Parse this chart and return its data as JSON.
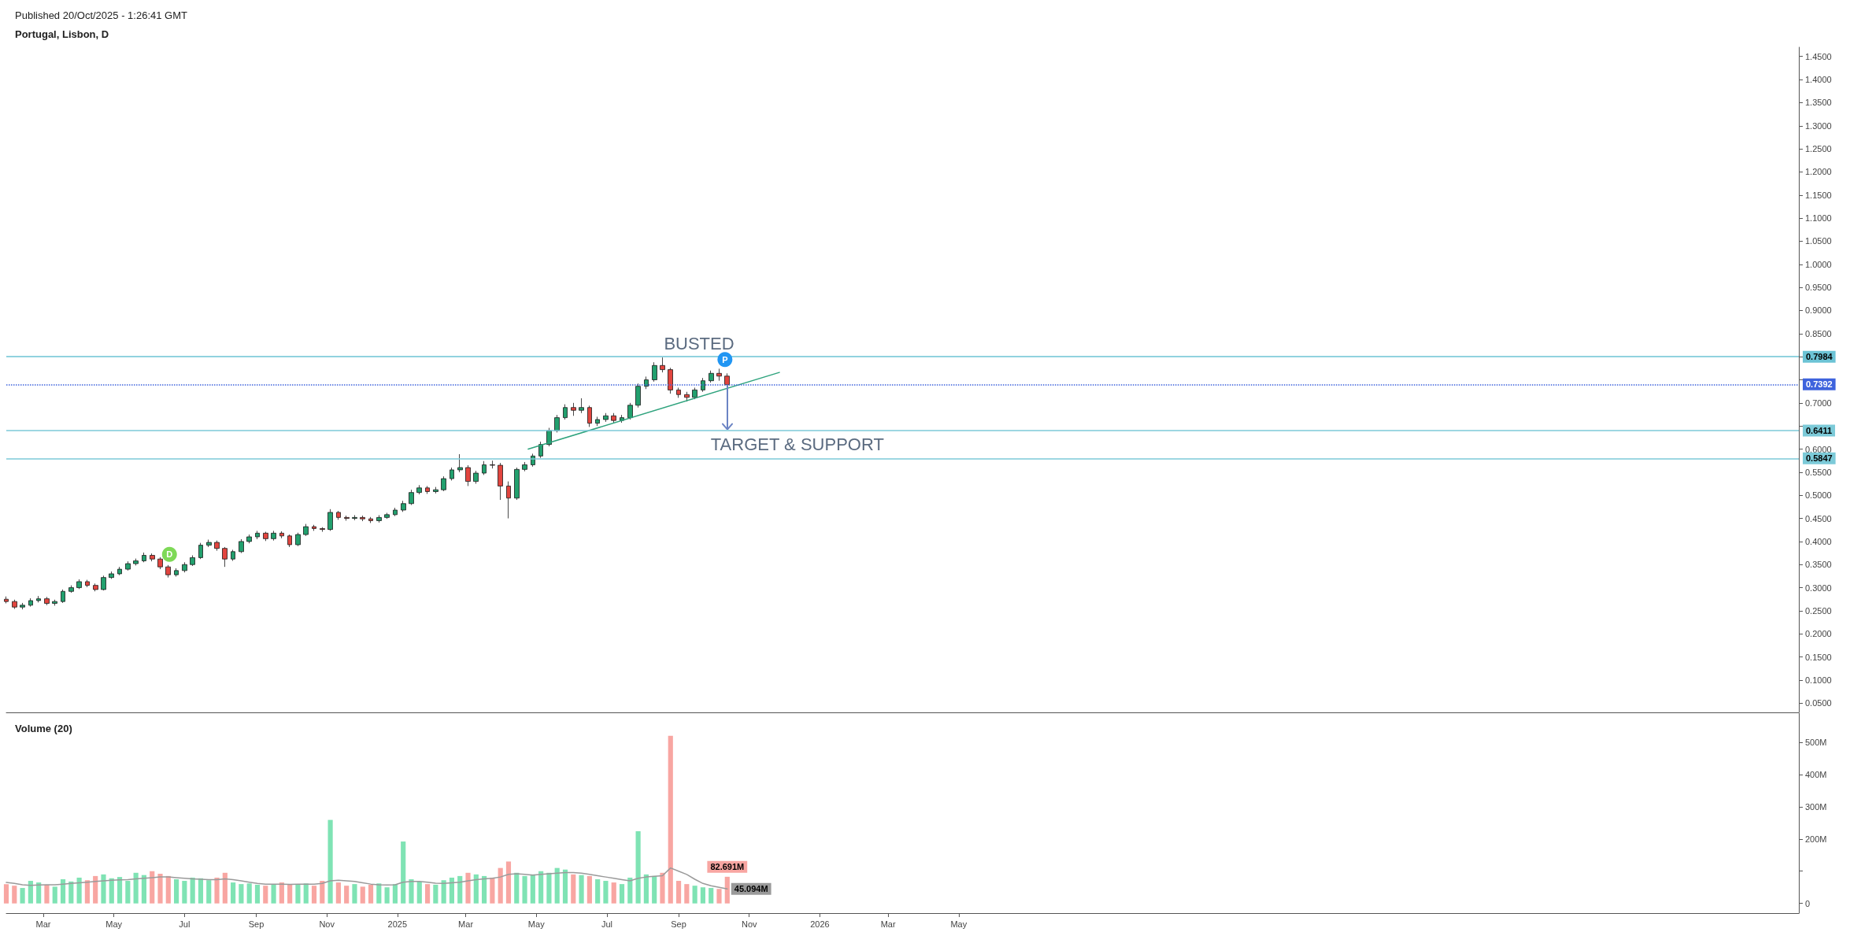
{
  "chart_data": [
    {
      "type": "candlestick",
      "title": "Portugal, Lisbon, D",
      "subtitle": "Published 20/Oct/2025 - 1:26:41 GMT",
      "x": [
        "2024-01-29",
        "2024-02-05",
        "2024-02-12",
        "2024-02-19",
        "2024-02-26",
        "2024-03-04",
        "2024-03-11",
        "2024-03-18",
        "2024-03-25",
        "2024-04-01",
        "2024-04-08",
        "2024-04-15",
        "2024-04-22",
        "2024-04-29",
        "2024-05-06",
        "2024-05-13",
        "2024-05-20",
        "2024-05-27",
        "2024-06-03",
        "2024-06-10",
        "2024-06-17",
        "2024-06-24",
        "2024-07-01",
        "2024-07-08",
        "2024-07-15",
        "2024-07-22",
        "2024-07-29",
        "2024-08-05",
        "2024-08-12",
        "2024-08-19",
        "2024-08-26",
        "2024-09-02",
        "2024-09-09",
        "2024-09-16",
        "2024-09-23",
        "2024-09-30",
        "2024-10-07",
        "2024-10-14",
        "2024-10-21",
        "2024-10-28",
        "2024-11-04",
        "2024-11-11",
        "2024-11-18",
        "2024-11-25",
        "2024-12-02",
        "2024-12-09",
        "2024-12-16",
        "2024-12-23",
        "2024-12-30",
        "2025-01-06",
        "2025-01-13",
        "2025-01-20",
        "2025-01-27",
        "2025-02-03",
        "2025-02-10",
        "2025-02-17",
        "2025-02-24",
        "2025-03-03",
        "2025-03-10",
        "2025-03-17",
        "2025-03-24",
        "2025-03-31",
        "2025-04-07",
        "2025-04-14",
        "2025-04-21",
        "2025-04-28",
        "2025-05-05",
        "2025-05-12",
        "2025-05-19",
        "2025-05-26",
        "2025-06-02",
        "2025-06-09",
        "2025-06-16",
        "2025-06-23",
        "2025-06-30",
        "2025-07-07",
        "2025-07-14",
        "2025-07-21",
        "2025-07-28",
        "2025-08-04",
        "2025-08-11",
        "2025-08-18",
        "2025-08-25",
        "2025-09-01",
        "2025-09-08",
        "2025-09-15",
        "2025-09-22",
        "2025-09-29",
        "2025-10-06",
        "2025-10-13"
      ],
      "ohlc": [
        [
          0.275,
          0.281,
          0.266,
          0.27
        ],
        [
          0.27,
          0.274,
          0.254,
          0.258
        ],
        [
          0.258,
          0.267,
          0.253,
          0.262
        ],
        [
          0.262,
          0.277,
          0.259,
          0.272
        ],
        [
          0.272,
          0.282,
          0.268,
          0.276
        ],
        [
          0.276,
          0.28,
          0.262,
          0.266
        ],
        [
          0.266,
          0.274,
          0.261,
          0.27
        ],
        [
          0.27,
          0.296,
          0.267,
          0.292
        ],
        [
          0.292,
          0.305,
          0.289,
          0.3
        ],
        [
          0.3,
          0.318,
          0.297,
          0.313
        ],
        [
          0.313,
          0.317,
          0.301,
          0.305
        ],
        [
          0.305,
          0.309,
          0.292,
          0.296
        ],
        [
          0.296,
          0.326,
          0.294,
          0.322
        ],
        [
          0.322,
          0.335,
          0.319,
          0.33
        ],
        [
          0.33,
          0.345,
          0.327,
          0.34
        ],
        [
          0.34,
          0.357,
          0.337,
          0.352
        ],
        [
          0.352,
          0.363,
          0.348,
          0.358
        ],
        [
          0.358,
          0.376,
          0.355,
          0.37
        ],
        [
          0.37,
          0.374,
          0.357,
          0.362
        ],
        [
          0.362,
          0.366,
          0.34,
          0.345
        ],
        [
          0.345,
          0.349,
          0.322,
          0.328
        ],
        [
          0.328,
          0.342,
          0.324,
          0.337
        ],
        [
          0.337,
          0.355,
          0.333,
          0.35
        ],
        [
          0.35,
          0.37,
          0.347,
          0.365
        ],
        [
          0.365,
          0.397,
          0.362,
          0.392
        ],
        [
          0.392,
          0.404,
          0.388,
          0.398
        ],
        [
          0.398,
          0.402,
          0.38,
          0.385
        ],
        [
          0.385,
          0.388,
          0.345,
          0.362
        ],
        [
          0.362,
          0.382,
          0.358,
          0.378
        ],
        [
          0.378,
          0.405,
          0.375,
          0.4
        ],
        [
          0.4,
          0.415,
          0.396,
          0.41
        ],
        [
          0.41,
          0.423,
          0.405,
          0.418
        ],
        [
          0.418,
          0.421,
          0.401,
          0.406
        ],
        [
          0.406,
          0.423,
          0.402,
          0.418
        ],
        [
          0.418,
          0.422,
          0.407,
          0.412
        ],
        [
          0.412,
          0.415,
          0.388,
          0.393
        ],
        [
          0.393,
          0.419,
          0.39,
          0.415
        ],
        [
          0.415,
          0.438,
          0.412,
          0.432
        ],
        [
          0.432,
          0.436,
          0.423,
          0.428
        ],
        [
          0.428,
          0.431,
          0.421,
          0.426
        ],
        [
          0.426,
          0.47,
          0.423,
          0.463
        ],
        [
          0.463,
          0.466,
          0.447,
          0.452
        ],
        [
          0.452,
          0.456,
          0.445,
          0.45
        ],
        [
          0.45,
          0.457,
          0.446,
          0.452
        ],
        [
          0.452,
          0.456,
          0.444,
          0.449
        ],
        [
          0.449,
          0.453,
          0.44,
          0.445
        ],
        [
          0.445,
          0.457,
          0.441,
          0.452
        ],
        [
          0.452,
          0.462,
          0.449,
          0.458
        ],
        [
          0.458,
          0.473,
          0.455,
          0.468
        ],
        [
          0.468,
          0.488,
          0.464,
          0.482
        ],
        [
          0.482,
          0.512,
          0.479,
          0.506
        ],
        [
          0.506,
          0.522,
          0.502,
          0.516
        ],
        [
          0.516,
          0.52,
          0.503,
          0.508
        ],
        [
          0.508,
          0.518,
          0.504,
          0.512
        ],
        [
          0.512,
          0.541,
          0.509,
          0.536
        ],
        [
          0.536,
          0.56,
          0.532,
          0.555
        ],
        [
          0.555,
          0.589,
          0.55,
          0.56
        ],
        [
          0.56,
          0.565,
          0.52,
          0.53
        ],
        [
          0.53,
          0.553,
          0.525,
          0.548
        ],
        [
          0.548,
          0.574,
          0.544,
          0.566
        ],
        [
          0.566,
          0.575,
          0.558,
          0.565
        ],
        [
          0.565,
          0.57,
          0.49,
          0.52
        ],
        [
          0.52,
          0.53,
          0.45,
          0.494
        ],
        [
          0.494,
          0.56,
          0.49,
          0.556
        ],
        [
          0.556,
          0.572,
          0.552,
          0.566
        ],
        [
          0.566,
          0.59,
          0.562,
          0.585
        ],
        [
          0.585,
          0.616,
          0.581,
          0.61
        ],
        [
          0.61,
          0.646,
          0.606,
          0.64
        ],
        [
          0.64,
          0.674,
          0.636,
          0.668
        ],
        [
          0.668,
          0.697,
          0.664,
          0.69
        ],
        [
          0.69,
          0.7,
          0.672,
          0.684
        ],
        [
          0.684,
          0.71,
          0.678,
          0.69
        ],
        [
          0.69,
          0.694,
          0.648,
          0.656
        ],
        [
          0.656,
          0.67,
          0.65,
          0.664
        ],
        [
          0.664,
          0.678,
          0.659,
          0.672
        ],
        [
          0.672,
          0.678,
          0.656,
          0.662
        ],
        [
          0.662,
          0.674,
          0.657,
          0.668
        ],
        [
          0.668,
          0.7,
          0.664,
          0.695
        ],
        [
          0.695,
          0.742,
          0.69,
          0.736
        ],
        [
          0.736,
          0.757,
          0.73,
          0.75
        ],
        [
          0.75,
          0.788,
          0.746,
          0.781
        ],
        [
          0.781,
          0.7984,
          0.766,
          0.772
        ],
        [
          0.772,
          0.776,
          0.72,
          0.728
        ],
        [
          0.728,
          0.733,
          0.711,
          0.718
        ],
        [
          0.718,
          0.724,
          0.703,
          0.712
        ],
        [
          0.712,
          0.733,
          0.708,
          0.728
        ],
        [
          0.728,
          0.754,
          0.724,
          0.748
        ],
        [
          0.748,
          0.77,
          0.744,
          0.764
        ],
        [
          0.764,
          0.774,
          0.748,
          0.758
        ],
        [
          0.758,
          0.764,
          0.735,
          0.7392
        ]
      ],
      "series": [
        {
          "type": "line",
          "x": [
            "2025-04-24",
            "2025-11-27"
          ],
          "values": [
            0.6,
            0.766
          ],
          "color": "#2ea37d"
        }
      ],
      "marker": "none",
      "xlim": [
        "2024-01-29",
        "2028-04-26"
      ],
      "ylim": [
        0.03,
        1.47
      ],
      "yticks": [
        {
          "value": 0.05,
          "label": "0.0500"
        },
        {
          "value": 0.1,
          "label": "0.1000"
        },
        {
          "value": 0.15,
          "label": "0.1500"
        },
        {
          "value": 0.2,
          "label": "0.2000"
        },
        {
          "value": 0.25,
          "label": "0.2500"
        },
        {
          "value": 0.3,
          "label": "0.3000"
        },
        {
          "value": 0.35,
          "label": "0.3500"
        },
        {
          "value": 0.4,
          "label": "0.4000"
        },
        {
          "value": 0.45,
          "label": "0.4500"
        },
        {
          "value": 0.5,
          "label": "0.5000"
        },
        {
          "value": 0.55,
          "label": "0.5500"
        },
        {
          "value": 0.6,
          "label": "0.6000"
        },
        {
          "value": 0.65,
          "label": null
        },
        {
          "value": 0.7,
          "label": "0.7000"
        },
        {
          "value": 0.75,
          "label": null
        },
        {
          "value": 0.8,
          "label": null
        },
        {
          "value": 0.85,
          "label": "0.8500"
        },
        {
          "value": 0.9,
          "label": "0.9000"
        },
        {
          "value": 0.95,
          "label": "0.9500"
        },
        {
          "value": 1.0,
          "label": "1.0000"
        },
        {
          "value": 1.05,
          "label": "1.0500"
        },
        {
          "value": 1.1,
          "label": "1.1000"
        },
        {
          "value": 1.15,
          "label": "1.1500"
        },
        {
          "value": 1.2,
          "label": "1.2000"
        },
        {
          "value": 1.25,
          "label": "1.2500"
        },
        {
          "value": 1.3,
          "label": "1.3000"
        },
        {
          "value": 1.35,
          "label": "1.3500"
        },
        {
          "value": 1.4,
          "label": "1.4000"
        },
        {
          "value": 1.45,
          "label": "1.4500"
        }
      ],
      "tick_labels": "y",
      "ref_lines": [
        {
          "axis": "y",
          "value": 0.7984,
          "label": "0.7984",
          "color": "#6cc3d5",
          "line_style": "solid"
        },
        {
          "axis": "y",
          "value": 0.7392,
          "label": "0.7392",
          "color": "#3e63dd",
          "line_style": "dotted"
        },
        {
          "axis": "y",
          "value": 0.6411,
          "label": "0.6411",
          "color": "#7ccad8",
          "line_style": "solid"
        },
        {
          "axis": "y",
          "value": 0.5847,
          "label": "0.5847",
          "color": "#7ccad8",
          "line_style": "solid"
        }
      ],
      "annotations": [
        {
          "text": "D",
          "x": "2024-06-18",
          "y": 0.372
        },
        {
          "text": "P",
          "x": "2025-10-11",
          "y": 0.794
        },
        "BUSTED",
        {
          "text": "TARGET & SUPPORT",
          "x": "2025-10-13",
          "y": 0.6411
        }
      ]
    },
    {
      "type": "bar",
      "title": "Volume (20)",
      "x": [
        "2024-01-29",
        "2024-02-05",
        "2024-02-12",
        "2024-02-19",
        "2024-02-26",
        "2024-03-04",
        "2024-03-11",
        "2024-03-18",
        "2024-03-25",
        "2024-04-01",
        "2024-04-08",
        "2024-04-15",
        "2024-04-22",
        "2024-04-29",
        "2024-05-06",
        "2024-05-13",
        "2024-05-20",
        "2024-05-27",
        "2024-06-03",
        "2024-06-10",
        "2024-06-17",
        "2024-06-24",
        "2024-07-01",
        "2024-07-08",
        "2024-07-15",
        "2024-07-22",
        "2024-07-29",
        "2024-08-05",
        "2024-08-12",
        "2024-08-19",
        "2024-08-26",
        "2024-09-02",
        "2024-09-09",
        "2024-09-16",
        "2024-09-23",
        "2024-09-30",
        "2024-10-07",
        "2024-10-14",
        "2024-10-21",
        "2024-10-28",
        "2024-11-04",
        "2024-11-11",
        "2024-11-18",
        "2024-11-25",
        "2024-12-02",
        "2024-12-09",
        "2024-12-16",
        "2024-12-23",
        "2024-12-30",
        "2025-01-06",
        "2025-01-13",
        "2025-01-20",
        "2025-01-27",
        "2025-02-03",
        "2025-02-10",
        "2025-02-17",
        "2025-02-24",
        "2025-03-03",
        "2025-03-10",
        "2025-03-17",
        "2025-03-24",
        "2025-03-31",
        "2025-04-07",
        "2025-04-14",
        "2025-04-21",
        "2025-04-28",
        "2025-05-05",
        "2025-05-12",
        "2025-05-19",
        "2025-05-26",
        "2025-06-02",
        "2025-06-09",
        "2025-06-16",
        "2025-06-23",
        "2025-06-30",
        "2025-07-07",
        "2025-07-14",
        "2025-07-21",
        "2025-07-28",
        "2025-08-04",
        "2025-08-11",
        "2025-08-18",
        "2025-08-25",
        "2025-09-01",
        "2025-09-08",
        "2025-09-15",
        "2025-09-22",
        "2025-09-29",
        "2025-10-06",
        "2025-10-13"
      ],
      "series": [
        {
          "type": "bar",
          "values": [
            60,
            55,
            48,
            70,
            65,
            58,
            52,
            75,
            68,
            80,
            72,
            85,
            90,
            78,
            82,
            70,
            95,
            88,
            100,
            92,
            85,
            75,
            70,
            80,
            78,
            72,
            80,
            95,
            65,
            60,
            62,
            58,
            55,
            60,
            65,
            58,
            60,
            62,
            55,
            70,
            259,
            65,
            55,
            60,
            52,
            58,
            62,
            50,
            60,
            192,
            75,
            68,
            60,
            58,
            72,
            80,
            85,
            95,
            90,
            85,
            80,
            110,
            130,
            95,
            85,
            90,
            100,
            95,
            110,
            105,
            90,
            88,
            85,
            75,
            70,
            65,
            60,
            80,
            224,
            90,
            85,
            95,
            520,
            70,
            60,
            55,
            50,
            48,
            45,
            82.691
          ],
          "colors": [
            "#f8a6a2",
            "#f8a6a2",
            "#7fe3b4",
            "#7fe3b4",
            "#7fe3b4",
            "#f8a6a2",
            "#7fe3b4",
            "#7fe3b4",
            "#7fe3b4",
            "#7fe3b4",
            "#f8a6a2",
            "#f8a6a2",
            "#7fe3b4",
            "#7fe3b4",
            "#7fe3b4",
            "#7fe3b4",
            "#7fe3b4",
            "#7fe3b4",
            "#f8a6a2",
            "#f8a6a2",
            "#f8a6a2",
            "#7fe3b4",
            "#7fe3b4",
            "#7fe3b4",
            "#7fe3b4",
            "#7fe3b4",
            "#f8a6a2",
            "#f8a6a2",
            "#7fe3b4",
            "#7fe3b4",
            "#7fe3b4",
            "#7fe3b4",
            "#f8a6a2",
            "#7fe3b4",
            "#f8a6a2",
            "#f8a6a2",
            "#7fe3b4",
            "#7fe3b4",
            "#f8a6a2",
            "#f8a6a2",
            "#7fe3b4",
            "#f8a6a2",
            "#f8a6a2",
            "#7fe3b4",
            "#f8a6a2",
            "#f8a6a2",
            "#7fe3b4",
            "#7fe3b4",
            "#7fe3b4",
            "#7fe3b4",
            "#7fe3b4",
            "#7fe3b4",
            "#f8a6a2",
            "#7fe3b4",
            "#7fe3b4",
            "#7fe3b4",
            "#7fe3b4",
            "#f8a6a2",
            "#7fe3b4",
            "#7fe3b4",
            "#f8a6a2",
            "#f8a6a2",
            "#f8a6a2",
            "#7fe3b4",
            "#7fe3b4",
            "#7fe3b4",
            "#7fe3b4",
            "#7fe3b4",
            "#7fe3b4",
            "#7fe3b4",
            "#f8a6a2",
            "#7fe3b4",
            "#f8a6a2",
            "#7fe3b4",
            "#7fe3b4",
            "#f8a6a2",
            "#7fe3b4",
            "#7fe3b4",
            "#7fe3b4",
            "#7fe3b4",
            "#7fe3b4",
            "#f8a6a2",
            "#f8a6a2",
            "#f8a6a2",
            "#f8a6a2",
            "#7fe3b4",
            "#7fe3b4",
            "#7fe3b4",
            "#f8a6a2",
            "#f8a6a2"
          ],
          "value_labels": [
            null,
            null,
            null,
            null,
            null,
            null,
            null,
            null,
            null,
            null,
            null,
            null,
            null,
            null,
            null,
            null,
            null,
            null,
            null,
            null,
            null,
            null,
            null,
            null,
            null,
            null,
            null,
            null,
            null,
            null,
            null,
            null,
            null,
            null,
            null,
            null,
            null,
            null,
            null,
            null,
            null,
            null,
            null,
            null,
            null,
            null,
            null,
            null,
            null,
            null,
            null,
            null,
            null,
            null,
            null,
            null,
            null,
            null,
            null,
            null,
            null,
            null,
            null,
            null,
            null,
            null,
            null,
            null,
            null,
            null,
            null,
            null,
            null,
            null,
            null,
            null,
            null,
            null,
            null,
            null,
            null,
            null,
            null,
            null,
            null,
            null,
            null,
            null,
            null,
            "82.691M"
          ]
        },
        {
          "type": "line",
          "color": "#9a9a9a",
          "values": [
            65,
            62,
            58,
            56,
            57,
            58,
            58,
            60,
            62,
            64,
            66,
            68,
            70,
            72,
            73,
            74,
            76,
            78,
            80,
            82,
            82,
            80,
            78,
            76,
            75,
            74,
            74,
            76,
            74,
            70,
            66,
            62,
            60,
            60,
            60,
            59,
            60,
            60,
            60,
            62,
            70,
            72,
            70,
            68,
            64,
            60,
            58,
            57,
            58,
            66,
            68,
            68,
            66,
            63,
            62,
            64,
            66,
            70,
            74,
            76,
            78,
            82,
            90,
            92,
            90,
            88,
            90,
            92,
            94,
            96,
            96,
            94,
            90,
            86,
            82,
            78,
            74,
            70,
            78,
            82,
            84,
            86,
            110,
            100,
            90,
            75,
            62,
            55,
            50,
            45.094
          ],
          "value_labels": [
            null,
            null,
            null,
            null,
            null,
            null,
            null,
            null,
            null,
            null,
            null,
            null,
            null,
            null,
            null,
            null,
            null,
            null,
            null,
            null,
            null,
            null,
            null,
            null,
            null,
            null,
            null,
            null,
            null,
            null,
            null,
            null,
            null,
            null,
            null,
            null,
            null,
            null,
            null,
            null,
            null,
            null,
            null,
            null,
            null,
            null,
            null,
            null,
            null,
            null,
            null,
            null,
            null,
            null,
            null,
            null,
            null,
            null,
            null,
            null,
            null,
            null,
            null,
            null,
            null,
            null,
            null,
            null,
            null,
            null,
            null,
            null,
            null,
            null,
            null,
            null,
            null,
            null,
            null,
            null,
            null,
            null,
            null,
            null,
            null,
            null,
            null,
            null,
            null,
            "45.094M"
          ]
        }
      ],
      "marker": "none",
      "xlim": [
        "2024-01-29",
        "2028-04-26"
      ],
      "xticks": [
        {
          "value": "2024-03-01",
          "label": "Mar"
        },
        {
          "value": "2024-05-01",
          "label": "May"
        },
        {
          "value": "2024-07-01",
          "label": "Jul"
        },
        {
          "value": "2024-09-01",
          "label": "Sep"
        },
        {
          "value": "2024-11-01",
          "label": "Nov"
        },
        {
          "value": "2025-01-01",
          "label": "2025"
        },
        {
          "value": "2025-03-01",
          "label": "Mar"
        },
        {
          "value": "2025-05-01",
          "label": "May"
        },
        {
          "value": "2025-07-01",
          "label": "Jul"
        },
        {
          "value": "2025-09-01",
          "label": "Sep"
        },
        {
          "value": "2025-11-01",
          "label": "Nov"
        },
        {
          "value": "2026-01-01",
          "label": "2026"
        },
        {
          "value": "2026-03-01",
          "label": "Mar"
        },
        {
          "value": "2026-05-01",
          "label": "May"
        }
      ],
      "ylim": [
        -30,
        590
      ],
      "yticks": [
        0,
        {
          "value": 100,
          "label": null
        },
        {
          "value": 200,
          "label": "200M"
        },
        {
          "value": 300,
          "label": "300M"
        },
        {
          "value": 400,
          "label": "400M"
        },
        {
          "value": 500,
          "label": "500M"
        }
      ]
    }
  ]
}
